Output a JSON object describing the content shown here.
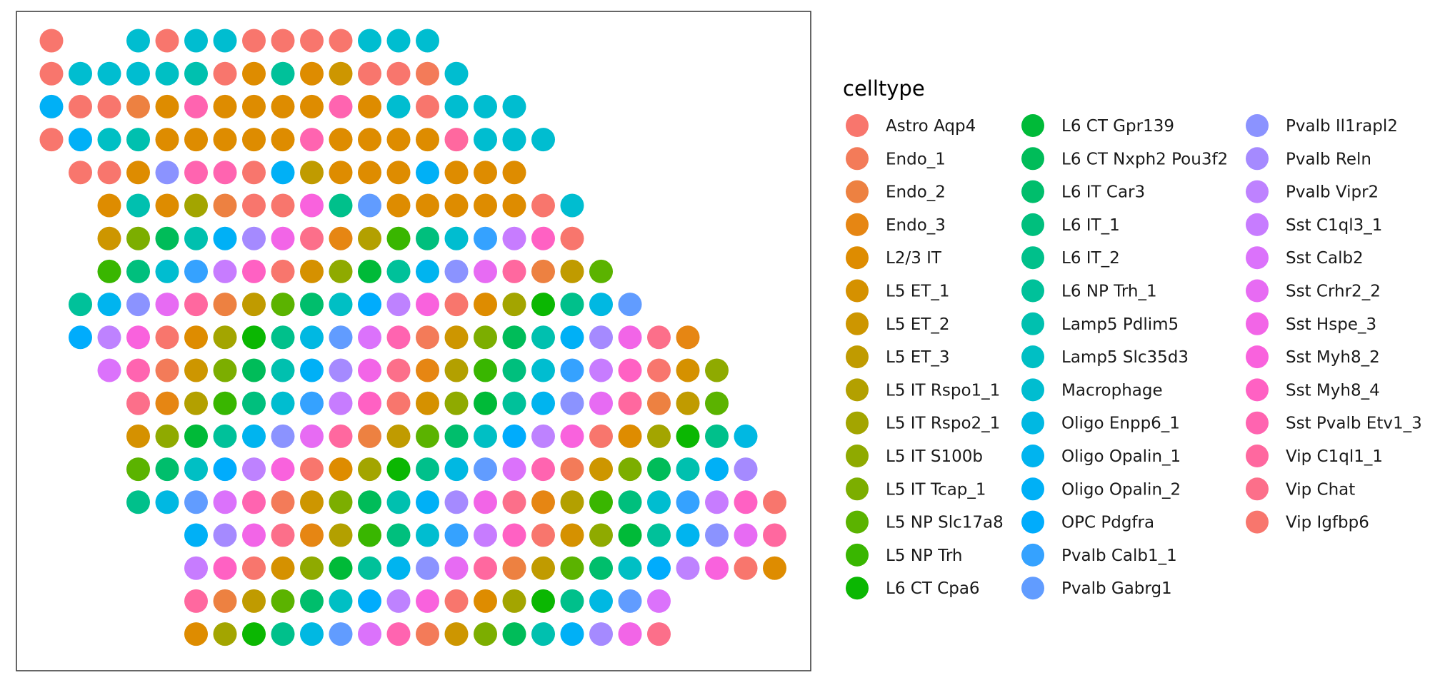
{
  "chart_data": {
    "type": "scatter",
    "title": "",
    "xlabel": "",
    "ylabel": "",
    "grid": false,
    "axes_visible": false,
    "legend_position": "right",
    "legend_title": "celltype",
    "categories": [
      {
        "name": "Astro Aqp4",
        "color": "#F8766D"
      },
      {
        "name": "Endo_1",
        "color": "#F37B59"
      },
      {
        "name": "Endo_2",
        "color": "#ED8141"
      },
      {
        "name": "Endo_3",
        "color": "#E68613"
      },
      {
        "name": "L2/3 IT",
        "color": "#DE8C00"
      },
      {
        "name": "L5 ET_1",
        "color": "#D59100"
      },
      {
        "name": "L5 ET_2",
        "color": "#CD9600"
      },
      {
        "name": "L5 ET_3",
        "color": "#C09B00"
      },
      {
        "name": "L5 IT Rspo1_1",
        "color": "#B3A000"
      },
      {
        "name": "L5 IT Rspo2_1",
        "color": "#A3A500"
      },
      {
        "name": "L5 IT S100b",
        "color": "#8FAA00"
      },
      {
        "name": "L5 IT Tcap_1",
        "color": "#7CAE00"
      },
      {
        "name": "L5 NP Slc17a8",
        "color": "#5BB300"
      },
      {
        "name": "L5 NP Trh",
        "color": "#39B600"
      },
      {
        "name": "L6 CT Cpa6",
        "color": "#0BB702"
      },
      {
        "name": "L6 CT Gpr139",
        "color": "#00BA38"
      },
      {
        "name": "L6 CT Nxph2 Pou3f2",
        "color": "#00BC59"
      },
      {
        "name": "L6 IT Car3",
        "color": "#00BE6C"
      },
      {
        "name": "L6 IT_1",
        "color": "#00BF7D"
      },
      {
        "name": "L6 IT_2",
        "color": "#00C08B"
      },
      {
        "name": "L6 NP Trh_1",
        "color": "#00C19A"
      },
      {
        "name": "Lamp5 Pdlim5",
        "color": "#00C0AF"
      },
      {
        "name": "Lamp5 Slc35d3",
        "color": "#00BFC4"
      },
      {
        "name": "Macrophage",
        "color": "#00BDD0"
      },
      {
        "name": "Oligo Enpp6_1",
        "color": "#00B8E2"
      },
      {
        "name": "Oligo Opalin_1",
        "color": "#00B4EF"
      },
      {
        "name": "Oligo Opalin_2",
        "color": "#00B0F6"
      },
      {
        "name": "OPC Pdgfra",
        "color": "#00ACFC"
      },
      {
        "name": "Pvalb Calb1_1",
        "color": "#35A2FF"
      },
      {
        "name": "Pvalb Gabrg1",
        "color": "#619CFF"
      },
      {
        "name": "Pvalb Il1rapl2",
        "color": "#8B93FF"
      },
      {
        "name": "Pvalb Reln",
        "color": "#A58AFF"
      },
      {
        "name": "Pvalb Vipr2",
        "color": "#BE82FF"
      },
      {
        "name": "Sst C1ql3_1",
        "color": "#C77CFF"
      },
      {
        "name": "Sst Calb2",
        "color": "#DB72FB"
      },
      {
        "name": "Sst Crhr2_2",
        "color": "#E76BF3"
      },
      {
        "name": "Sst Hspe_3",
        "color": "#F265E7"
      },
      {
        "name": "Sst Myh8_2",
        "color": "#F962DD"
      },
      {
        "name": "Sst Myh8_4",
        "color": "#FF61C3"
      },
      {
        "name": "Sst Pvalb Etv1_3",
        "color": "#FF64B0"
      },
      {
        "name": "Vip C1ql1_1",
        "color": "#FF689F"
      },
      {
        "name": "Vip Chat",
        "color": "#FC6F8A"
      },
      {
        "name": "Vip Igfbp6",
        "color": "#F8766D"
      }
    ],
    "grid_layout": {
      "rows": 19,
      "columns": 26,
      "description_rows": [
        {
          "row": 1,
          "start_col": 1,
          "cells": [
            "Astro Aqp4",
            null,
            null,
            "Macrophage",
            "Astro Aqp4",
            "Macrophage",
            "Macrophage",
            "Astro Aqp4",
            "Astro Aqp4",
            "Astro Aqp4",
            "Astro Aqp4",
            "Macrophage",
            "Macrophage",
            "Macrophage"
          ]
        },
        {
          "row": 2,
          "start_col": 1,
          "cells": [
            "Astro Aqp4",
            "Macrophage",
            "Macrophage",
            "Macrophage",
            "Lamp5 Slc35d3",
            "Lamp5 Pdlim5",
            "Astro Aqp4",
            "L2/3 IT",
            "L6 NP Trh_1",
            "L2/3 IT",
            "L5 ET_2",
            "Astro Aqp4",
            "Astro Aqp4",
            "Endo_1",
            "Macrophage"
          ]
        },
        {
          "row": 3,
          "start_col": 1,
          "cells": [
            "Oligo Opalin_2",
            "Astro Aqp4",
            "Astro Aqp4",
            "Endo_2",
            "L2/3 IT",
            "Sst Pvalb Etv1_3",
            "L2/3 IT",
            "L2/3 IT",
            "L2/3 IT",
            "L2/3 IT",
            "Sst Pvalb Etv1_3",
            "L2/3 IT",
            "Macrophage",
            "Astro Aqp4",
            "Macrophage",
            "Macrophage",
            "Macrophage"
          ]
        },
        {
          "row": 4,
          "start_col": 1,
          "cells": [
            "Astro Aqp4",
            "Oligo Opalin_2",
            "Lamp5 Slc35d3",
            "Lamp5 Pdlim5",
            "L2/3 IT",
            "L2/3 IT",
            "L2/3 IT",
            "L2/3 IT",
            "L2/3 IT",
            "Sst Pvalb Etv1_3",
            "L2/3 IT",
            "L2/3 IT",
            "L2/3 IT",
            "L2/3 IT",
            "Vip C1ql1_1",
            "Macrophage",
            "Macrophage",
            "Macrophage"
          ]
        },
        {
          "row": 5,
          "start_col": 2,
          "cells": [
            "Astro Aqp4",
            "Astro Aqp4",
            "L2/3 IT",
            "Pvalb Il1rapl2",
            "Sst Pvalb Etv1_3",
            "Sst Pvalb Etv1_3",
            "Astro Aqp4",
            "Oligo Opalin_2",
            "L5 ET_3",
            "L2/3 IT",
            "L2/3 IT",
            "L2/3 IT",
            "Oligo Opalin_2",
            "L2/3 IT",
            "L2/3 IT",
            "L2/3 IT"
          ]
        },
        {
          "row": 6,
          "start_col": 3,
          "cells": [
            "L2/3 IT",
            "Lamp5 Pdlim5",
            "L2/3 IT",
            "L5 IT Rspo2_1",
            "Endo_2",
            "Astro Aqp4",
            "Astro Aqp4",
            "Sst Myh8_2",
            "L6 IT_2",
            "Pvalb Gabrg1",
            "L2/3 IT",
            "L2/3 IT",
            "L2/3 IT",
            "L2/3 IT",
            "L2/3 IT",
            "Astro Aqp4",
            "Macrophage"
          ]
        }
      ],
      "note": "Remaining rows 7–19 follow the same hexagonal spot layout with mixed cell types as shown in the image."
    }
  }
}
